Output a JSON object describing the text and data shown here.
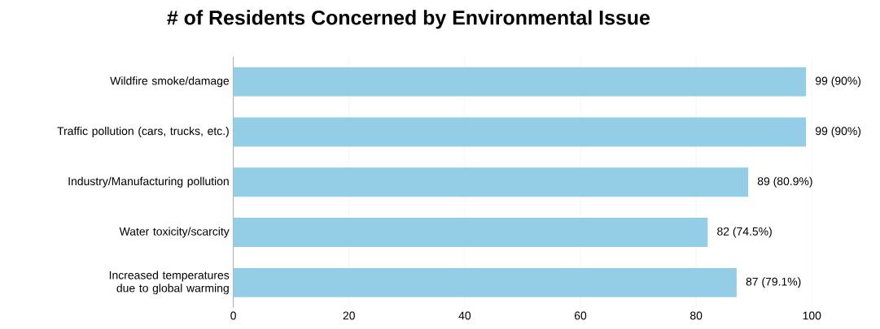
{
  "chart_data": {
    "type": "bar",
    "orientation": "horizontal",
    "title": "# of Residents Concerned by Environmental Issue",
    "categories": [
      "Wildfire smoke/damage",
      "Traffic pollution (cars, trucks, etc.)",
      "Industry/Manufacturing pollution",
      "Water toxicity/scarcity",
      "Increased temperatures due to global warming"
    ],
    "values": [
      99,
      99,
      89,
      82,
      87
    ],
    "value_labels": [
      "99 (90%)",
      "99 (90%)",
      "89 (80.9%)",
      "82 (74.5%)",
      "87 (79.1%)"
    ],
    "color": "#93cde6",
    "xlim": [
      0,
      100
    ],
    "xticks": [
      0,
      20,
      40,
      60,
      80,
      100
    ],
    "grid": "x"
  }
}
